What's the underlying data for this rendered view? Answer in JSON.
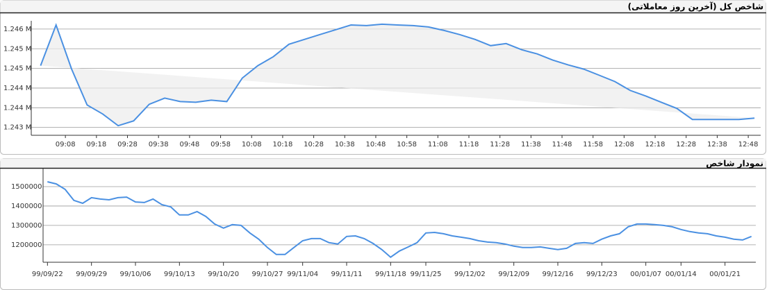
{
  "chart_data": [
    {
      "type": "line",
      "title": "شاخص کل (آخرین روز معاملاتی)",
      "x": [
        "09:00",
        "09:05",
        "09:10",
        "09:15",
        "09:20",
        "09:25",
        "09:30",
        "09:35",
        "09:40",
        "09:45",
        "09:50",
        "09:55",
        "10:00",
        "10:05",
        "10:10",
        "10:15",
        "10:20",
        "10:25",
        "10:30",
        "10:35",
        "10:40",
        "10:45",
        "10:50",
        "10:55",
        "11:00",
        "11:05",
        "11:10",
        "11:15",
        "11:20",
        "11:25",
        "11:30",
        "11:35",
        "11:40",
        "11:45",
        "11:50",
        "11:55",
        "12:00",
        "12:05",
        "12:10",
        "12:15",
        "12:20",
        "12:25",
        "12:30",
        "12:35",
        "12:40",
        "12:45",
        "12:50"
      ],
      "values": [
        1245070,
        1246105,
        1244983,
        1244070,
        1243842,
        1243544,
        1243667,
        1244088,
        1244246,
        1244158,
        1244140,
        1244193,
        1244158,
        1244755,
        1245070,
        1245298,
        1245614,
        1245737,
        1245860,
        1245982,
        1246105,
        1246088,
        1246123,
        1246105,
        1246088,
        1246053,
        1245965,
        1245860,
        1245737,
        1245579,
        1245632,
        1245474,
        1245368,
        1245211,
        1245088,
        1244983,
        1244825,
        1244667,
        1244439,
        1244298,
        1244140,
        1243982,
        1243702,
        1243702,
        1243702,
        1243702,
        1243737
      ],
      "color": "#4a90e2",
      "xlim": [
        "08:57",
        "12:52"
      ],
      "xticks": [
        "09:08",
        "09:18",
        "09:28",
        "09:38",
        "09:48",
        "09:58",
        "10:08",
        "10:18",
        "10:28",
        "10:38",
        "10:48",
        "10:58",
        "11:08",
        "11:18",
        "11:28",
        "11:38",
        "11:48",
        "11:58",
        "12:08",
        "12:18",
        "12:28",
        "12:38",
        "12:48"
      ],
      "ylim": [
        1243300,
        1246210
      ],
      "yticks": [
        {
          "value": 1246000,
          "label": "1.246 M"
        },
        {
          "value": 1245500,
          "label": "1.245 M"
        },
        {
          "value": 1245000,
          "label": "1.245 M"
        },
        {
          "value": 1244500,
          "label": "1.244 M"
        },
        {
          "value": 1244000,
          "label": "1.244 M"
        },
        {
          "value": 1243500,
          "label": "1.243 M"
        }
      ],
      "grid": true
    },
    {
      "type": "line",
      "title": "نمودار شاخص",
      "categories": [
        "99/09/22",
        null,
        null,
        null,
        null,
        "99/09/29",
        null,
        null,
        null,
        null,
        "99/10/06",
        null,
        null,
        null,
        null,
        "99/10/13",
        null,
        null,
        null,
        null,
        "99/10/20",
        null,
        null,
        null,
        null,
        "99/10/27",
        null,
        null,
        null,
        "99/11/04",
        null,
        null,
        null,
        null,
        "99/11/11",
        null,
        null,
        null,
        null,
        "99/11/18",
        null,
        null,
        null,
        "99/11/25",
        null,
        null,
        null,
        null,
        "99/12/02",
        null,
        null,
        null,
        null,
        "99/12/09",
        null,
        null,
        null,
        null,
        "99/12/16",
        null,
        null,
        null,
        null,
        "99/12/23",
        null,
        null,
        null,
        null,
        "00/01/07",
        null,
        null,
        null,
        "00/01/14",
        null,
        null,
        null,
        null,
        "00/01/21",
        null,
        null,
        null
      ],
      "values": [
        1525000,
        1514000,
        1486000,
        1429000,
        1414000,
        1443000,
        1436000,
        1432000,
        1443000,
        1446000,
        1421000,
        1418000,
        1436000,
        1407000,
        1396000,
        1354000,
        1354000,
        1371000,
        1346000,
        1307000,
        1286000,
        1304000,
        1300000,
        1261000,
        1229000,
        1186000,
        1150000,
        1150000,
        1186000,
        1221000,
        1232000,
        1232000,
        1211000,
        1204000,
        1243000,
        1246000,
        1232000,
        1207000,
        1175000,
        1136000,
        1168000,
        1189000,
        1211000,
        1261000,
        1264000,
        1257000,
        1246000,
        1239000,
        1232000,
        1221000,
        1214000,
        1211000,
        1204000,
        1193000,
        1186000,
        1186000,
        1189000,
        1182000,
        1175000,
        1182000,
        1207000,
        1211000,
        1207000,
        1229000,
        1246000,
        1257000,
        1293000,
        1307000,
        1307000,
        1304000,
        1300000,
        1293000,
        1279000,
        1268000,
        1261000,
        1257000,
        1246000,
        1239000,
        1229000,
        1225000,
        1243000
      ],
      "color": "#4a90e2",
      "ylim": [
        1110000,
        1593000
      ],
      "yticks": [
        1500000,
        1400000,
        1300000,
        1200000
      ],
      "grid": true
    }
  ]
}
